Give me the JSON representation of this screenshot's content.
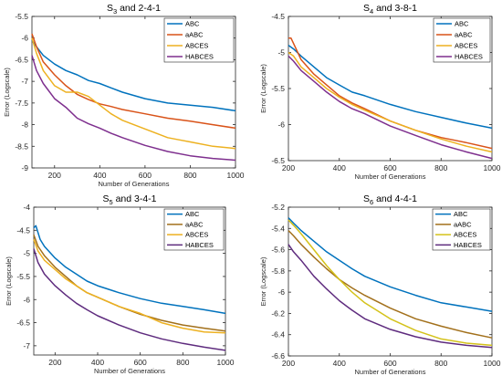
{
  "chart_data": [
    {
      "type": "line",
      "title_main": "S",
      "title_sub": "3",
      "title_rest": " and 2-4-1",
      "xlabel": "Number of Generations",
      "ylabel": "Error (Logscale)",
      "xlim": [
        100,
        1000
      ],
      "ylim": [
        -9,
        -5.5
      ],
      "xticks": [
        200,
        400,
        600,
        800,
        1000
      ],
      "yticks": [
        -9,
        -8.5,
        -8,
        -7.5,
        -7,
        -6.5,
        -6,
        -5.5
      ],
      "legend": "top-right",
      "series": [
        {
          "name": "ABC",
          "color": "#0072BD",
          "x": [
            100,
            120,
            150,
            200,
            250,
            300,
            350,
            400,
            450,
            500,
            600,
            700,
            800,
            900,
            1000
          ],
          "y": [
            -6.05,
            -6.2,
            -6.4,
            -6.6,
            -6.75,
            -6.85,
            -6.98,
            -7.05,
            -7.15,
            -7.25,
            -7.4,
            -7.5,
            -7.55,
            -7.6,
            -7.68
          ]
        },
        {
          "name": "aABC",
          "color": "#D95319",
          "x": [
            100,
            120,
            150,
            200,
            250,
            300,
            350,
            400,
            450,
            500,
            600,
            700,
            800,
            900,
            1000
          ],
          "y": [
            -5.9,
            -6.2,
            -6.55,
            -6.85,
            -7.1,
            -7.3,
            -7.42,
            -7.52,
            -7.58,
            -7.65,
            -7.75,
            -7.85,
            -7.92,
            -8.0,
            -8.08
          ]
        },
        {
          "name": "ABCES",
          "color": "#EDB120",
          "x": [
            100,
            120,
            150,
            200,
            250,
            300,
            350,
            400,
            450,
            500,
            550,
            600,
            700,
            750,
            800,
            900,
            1000
          ],
          "y": [
            -6.0,
            -6.35,
            -6.75,
            -7.1,
            -7.25,
            -7.25,
            -7.35,
            -7.55,
            -7.75,
            -7.9,
            -8.0,
            -8.1,
            -8.3,
            -8.35,
            -8.4,
            -8.5,
            -8.55
          ]
        },
        {
          "name": "HABCES",
          "color": "#7E2F8E",
          "x": [
            100,
            120,
            150,
            200,
            250,
            300,
            350,
            400,
            450,
            500,
            600,
            700,
            800,
            900,
            1000
          ],
          "y": [
            -6.4,
            -6.75,
            -7.05,
            -7.4,
            -7.6,
            -7.85,
            -7.98,
            -8.08,
            -8.2,
            -8.3,
            -8.48,
            -8.62,
            -8.72,
            -8.78,
            -8.82
          ]
        }
      ]
    },
    {
      "type": "line",
      "title_main": "S",
      "title_sub": "4",
      "title_rest": " and 3-8-1",
      "xlabel": "Number of Generations",
      "ylabel": "Error (Logscale)",
      "xlim": [
        200,
        1000
      ],
      "ylim": [
        -6.5,
        -4.5
      ],
      "xticks": [
        200,
        400,
        600,
        800,
        1000
      ],
      "yticks": [
        -6.5,
        -6,
        -5.5,
        -5,
        -4.5
      ],
      "legend": "top-right",
      "series": [
        {
          "name": "ABC",
          "color": "#0072BD",
          "x": [
            200,
            220,
            250,
            300,
            350,
            400,
            450,
            500,
            600,
            700,
            800,
            900,
            1000
          ],
          "y": [
            -4.9,
            -4.95,
            -5.05,
            -5.2,
            -5.35,
            -5.45,
            -5.55,
            -5.6,
            -5.72,
            -5.82,
            -5.9,
            -5.98,
            -6.05
          ]
        },
        {
          "name": "aABC",
          "color": "#D95319",
          "x": [
            200,
            210,
            230,
            250,
            300,
            350,
            400,
            450,
            500,
            600,
            700,
            800,
            900,
            1000
          ],
          "y": [
            -4.8,
            -4.8,
            -4.95,
            -5.1,
            -5.3,
            -5.45,
            -5.6,
            -5.7,
            -5.78,
            -5.95,
            -6.08,
            -6.18,
            -6.25,
            -6.33
          ]
        },
        {
          "name": "ABCES",
          "color": "#EDB120",
          "x": [
            200,
            220,
            250,
            300,
            350,
            400,
            450,
            500,
            600,
            700,
            800,
            900,
            1000
          ],
          "y": [
            -5.0,
            -5.05,
            -5.2,
            -5.35,
            -5.5,
            -5.62,
            -5.72,
            -5.8,
            -5.95,
            -6.08,
            -6.2,
            -6.3,
            -6.38
          ]
        },
        {
          "name": "HABCES",
          "color": "#7E2F8E",
          "x": [
            200,
            220,
            250,
            300,
            350,
            400,
            450,
            500,
            600,
            700,
            800,
            900,
            1000
          ],
          "y": [
            -5.05,
            -5.12,
            -5.25,
            -5.4,
            -5.55,
            -5.68,
            -5.78,
            -5.85,
            -6.02,
            -6.15,
            -6.28,
            -6.38,
            -6.47
          ]
        }
      ]
    },
    {
      "type": "line",
      "title_main": "S",
      "title_sub": "5",
      "title_rest": " and 3-4-1",
      "xlabel": "Number of Generations",
      "ylabel": "Error (Logscale)",
      "xlim": [
        100,
        1000
      ],
      "ylim": [
        -7.2,
        -4
      ],
      "xticks": [
        200,
        400,
        600,
        800,
        1000
      ],
      "yticks": [
        -7,
        -6.5,
        -6,
        -5.5,
        -5,
        -4.5,
        -4
      ],
      "legend": "top-right",
      "series": [
        {
          "name": "ABC",
          "color": "#0072BD",
          "x": [
            100,
            110,
            130,
            150,
            200,
            250,
            300,
            350,
            400,
            500,
            600,
            700,
            800,
            900,
            1000
          ],
          "y": [
            -4.45,
            -4.4,
            -4.7,
            -4.85,
            -5.1,
            -5.3,
            -5.45,
            -5.6,
            -5.7,
            -5.85,
            -5.98,
            -6.08,
            -6.15,
            -6.22,
            -6.3
          ]
        },
        {
          "name": "aABC",
          "color": "#A2701B",
          "x": [
            100,
            120,
            150,
            200,
            250,
            300,
            350,
            400,
            500,
            600,
            700,
            800,
            900,
            1000
          ],
          "y": [
            -4.6,
            -4.85,
            -5.05,
            -5.3,
            -5.5,
            -5.7,
            -5.85,
            -5.95,
            -6.15,
            -6.32,
            -6.45,
            -6.55,
            -6.62,
            -6.68
          ]
        },
        {
          "name": "ABCES",
          "color": "#EDB120",
          "x": [
            100,
            120,
            150,
            200,
            250,
            300,
            350,
            400,
            500,
            600,
            700,
            800,
            900,
            1000
          ],
          "y": [
            -4.7,
            -4.95,
            -5.15,
            -5.35,
            -5.55,
            -5.7,
            -5.85,
            -5.95,
            -6.15,
            -6.3,
            -6.5,
            -6.62,
            -6.7,
            -6.72
          ]
        },
        {
          "name": "HABCES",
          "color": "#5E2B7E",
          "x": [
            100,
            120,
            150,
            200,
            250,
            300,
            350,
            400,
            500,
            600,
            700,
            800,
            900,
            1000
          ],
          "y": [
            -4.9,
            -5.2,
            -5.45,
            -5.7,
            -5.9,
            -6.08,
            -6.22,
            -6.35,
            -6.55,
            -6.72,
            -6.85,
            -6.95,
            -7.03,
            -7.1
          ]
        }
      ]
    },
    {
      "type": "line",
      "title_main": "S",
      "title_sub": "6",
      "title_rest": " and 4-4-1",
      "xlabel": "Number of Generations",
      "ylabel": "Error (Logscale)",
      "xlim": [
        200,
        1000
      ],
      "ylim": [
        -6.6,
        -5.2
      ],
      "xticks": [
        200,
        400,
        600,
        800,
        1000
      ],
      "yticks": [
        -6.6,
        -6.4,
        -6.2,
        -6,
        -5.8,
        -5.6,
        -5.4,
        -5.2
      ],
      "legend": "top-right",
      "series": [
        {
          "name": "ABC",
          "color": "#0072BD",
          "x": [
            200,
            220,
            250,
            300,
            350,
            400,
            450,
            500,
            600,
            700,
            800,
            900,
            1000
          ],
          "y": [
            -5.3,
            -5.35,
            -5.42,
            -5.52,
            -5.62,
            -5.7,
            -5.78,
            -5.85,
            -5.95,
            -6.03,
            -6.1,
            -6.14,
            -6.18
          ]
        },
        {
          "name": "aABC",
          "color": "#A2701B",
          "x": [
            200,
            220,
            250,
            300,
            350,
            400,
            450,
            500,
            600,
            700,
            800,
            900,
            1000
          ],
          "y": [
            -5.42,
            -5.47,
            -5.55,
            -5.67,
            -5.78,
            -5.88,
            -5.96,
            -6.03,
            -6.15,
            -6.25,
            -6.32,
            -6.38,
            -6.43
          ]
        },
        {
          "name": "ABCES",
          "color": "#D4C21A",
          "x": [
            200,
            220,
            250,
            300,
            350,
            400,
            450,
            500,
            600,
            700,
            800,
            900,
            1000
          ],
          "y": [
            -5.32,
            -5.37,
            -5.45,
            -5.6,
            -5.75,
            -5.88,
            -6.0,
            -6.1,
            -6.25,
            -6.36,
            -6.44,
            -6.48,
            -6.5
          ]
        },
        {
          "name": "HABCES",
          "color": "#5E2B7E",
          "x": [
            200,
            220,
            250,
            300,
            350,
            400,
            450,
            500,
            600,
            700,
            800,
            900,
            1000
          ],
          "y": [
            -5.55,
            -5.62,
            -5.7,
            -5.85,
            -5.97,
            -6.08,
            -6.17,
            -6.25,
            -6.35,
            -6.42,
            -6.47,
            -6.5,
            -6.52
          ]
        }
      ]
    }
  ]
}
